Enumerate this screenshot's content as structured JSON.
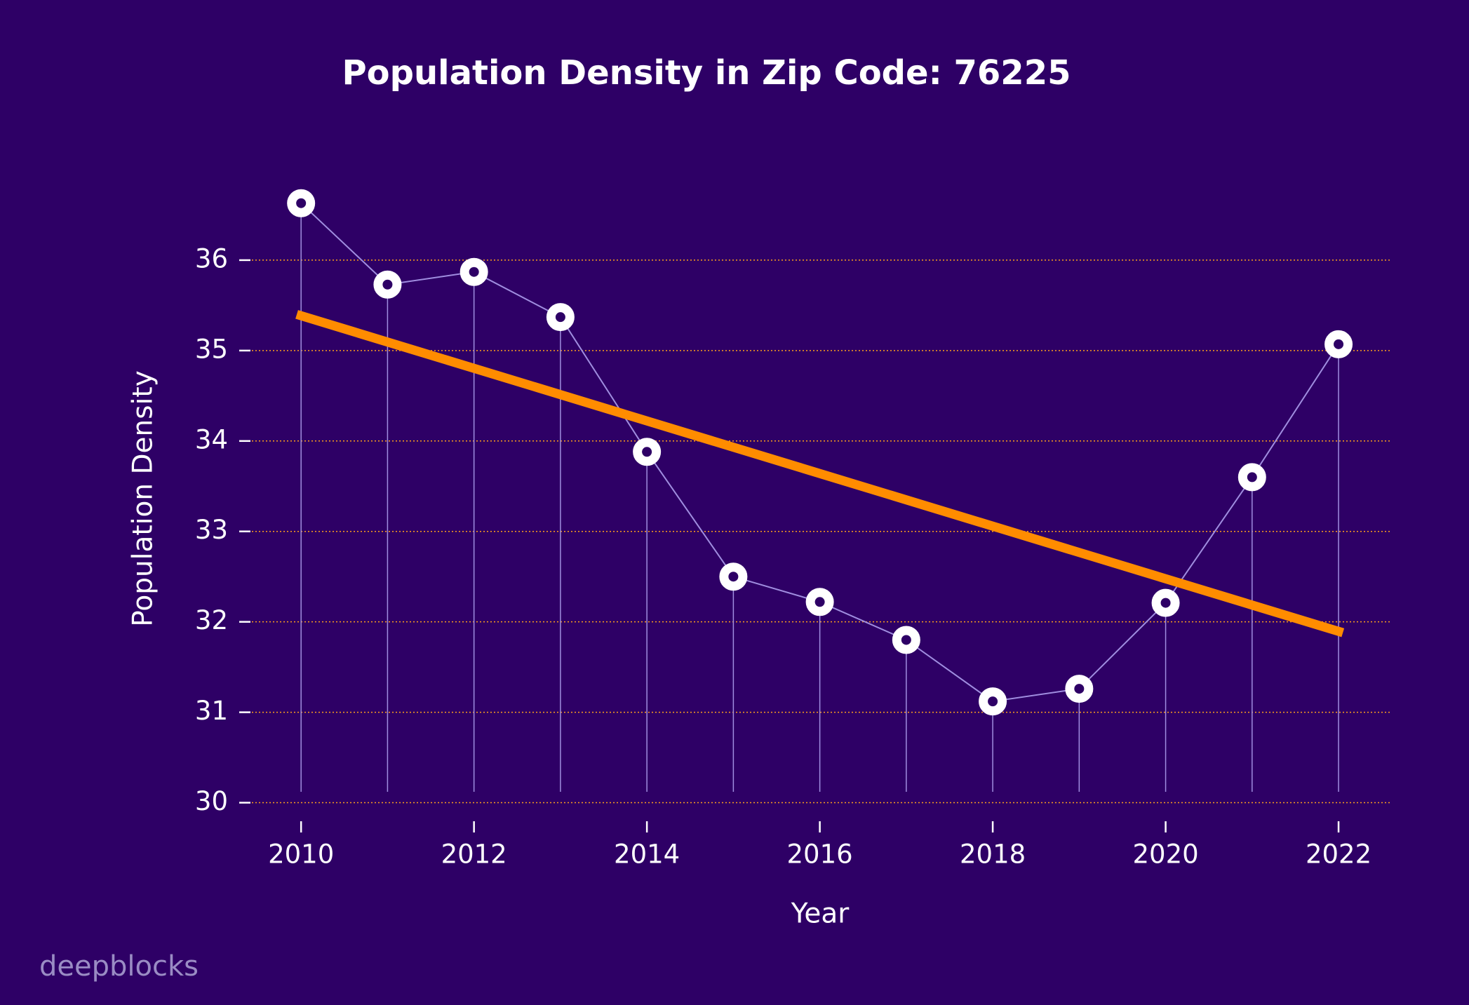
{
  "chart_data": {
    "type": "line",
    "title": "Population Density in Zip Code: 76225",
    "x_label": "Year",
    "y_label": "Population Density",
    "x": [
      2010,
      2011,
      2012,
      2013,
      2014,
      2015,
      2016,
      2017,
      2018,
      2019,
      2020,
      2021,
      2022
    ],
    "series": [
      {
        "color": "#a08ee0",
        "values": [
          36.63,
          35.73,
          35.87,
          35.37,
          33.88,
          32.5,
          32.22,
          31.8,
          31.12,
          31.26,
          32.21,
          33.6,
          35.07
        ]
      }
    ],
    "trend": {
      "color": "#ff8c00",
      "x": [
        2009.95,
        2022.05
      ],
      "values": [
        35.4,
        31.88
      ]
    },
    "xlim": [
      2009.39,
      2022.6
    ],
    "xticks": [
      2010,
      2012,
      2014,
      2016,
      2018,
      2020,
      2022
    ],
    "ylim": [
      29.88,
      37.0
    ],
    "yticks": [
      30,
      31,
      32,
      33,
      34,
      35,
      36
    ],
    "grid": true,
    "grid_color": "#ff9e1b",
    "watermark": "deepblocks"
  }
}
